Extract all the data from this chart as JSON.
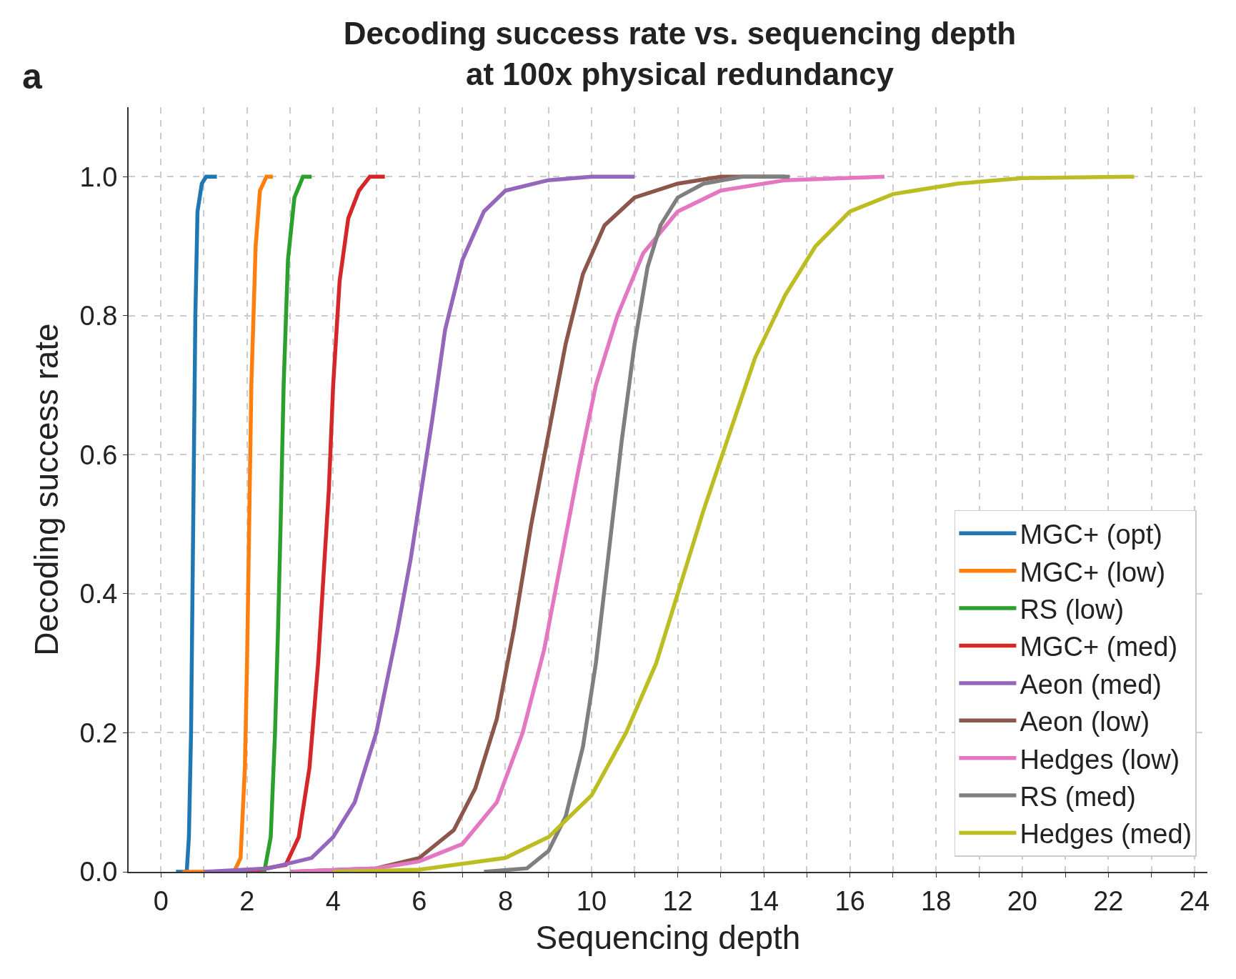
{
  "chart_data": {
    "type": "line",
    "title": "Decoding success rate vs. sequencing depth\nat 100x physical redundancy",
    "xlabel": "Sequencing depth",
    "ylabel": "Decoding success rate",
    "annotations": [
      "a"
    ],
    "xlim": [
      -0.75,
      24.3
    ],
    "ylim": [
      0,
      1.1
    ],
    "xticks": [
      0,
      {
        "value": 1,
        "label": null
      },
      2,
      {
        "value": 3,
        "label": null
      },
      4,
      {
        "value": 5,
        "label": null
      },
      6,
      {
        "value": 7,
        "label": null
      },
      8,
      {
        "value": 9,
        "label": null
      },
      10,
      {
        "value": 11,
        "label": null
      },
      12,
      {
        "value": 13,
        "label": null
      },
      14,
      {
        "value": 15,
        "label": null
      },
      16,
      {
        "value": 17,
        "label": null
      },
      18,
      {
        "value": 19,
        "label": null
      },
      20,
      {
        "value": 21,
        "label": null
      },
      22,
      {
        "value": 23,
        "label": null
      },
      24
    ],
    "yticks": [
      {
        "value": 0,
        "label": "0.0"
      },
      0.2,
      0.4,
      0.6,
      0.8,
      {
        "value": 1,
        "label": "1.0"
      }
    ],
    "grid": true,
    "legend": "bottom right",
    "line_style": "solid",
    "marker": "none",
    "series": [
      {
        "name": "MGC+ (opt)",
        "color": "#1f77b4",
        "x": [
          0.35,
          0.6,
          0.65,
          0.7,
          0.75,
          0.8,
          0.85,
          0.95,
          1.05,
          1.3
        ],
        "values": [
          0,
          0.0,
          0.05,
          0.2,
          0.5,
          0.8,
          0.95,
          0.99,
          1,
          1
        ]
      },
      {
        "name": "MGC+ (low)",
        "color": "#ff7f0e",
        "x": [
          0.5,
          1.7,
          1.85,
          1.95,
          2.0,
          2.05,
          2.1,
          2.2,
          2.3,
          2.45,
          2.6
        ],
        "values": [
          0,
          0,
          0.02,
          0.15,
          0.3,
          0.5,
          0.7,
          0.9,
          0.98,
          1,
          1
        ]
      },
      {
        "name": "RS (low)",
        "color": "#2ca02c",
        "x": [
          1.5,
          2.4,
          2.55,
          2.65,
          2.72,
          2.78,
          2.85,
          2.95,
          3.1,
          3.3,
          3.5
        ],
        "values": [
          0,
          0,
          0.05,
          0.2,
          0.35,
          0.5,
          0.7,
          0.88,
          0.97,
          1,
          1
        ]
      },
      {
        "name": "MGC+ (med)",
        "color": "#d62728",
        "x": [
          2.0,
          2.9,
          3.2,
          3.45,
          3.65,
          3.8,
          3.9,
          4.0,
          4.15,
          4.35,
          4.6,
          4.85,
          5.2
        ],
        "values": [
          0,
          0.01,
          0.05,
          0.15,
          0.3,
          0.45,
          0.55,
          0.7,
          0.85,
          0.94,
          0.98,
          1,
          1
        ]
      },
      {
        "name": "Aeon (med)",
        "color": "#9467bd",
        "x": [
          1.0,
          2.5,
          3.5,
          4.0,
          4.5,
          5.0,
          5.5,
          5.8,
          6.05,
          6.3,
          6.6,
          7.0,
          7.5,
          8.0,
          9.0,
          10.0,
          11.0
        ],
        "values": [
          0,
          0.005,
          0.02,
          0.05,
          0.1,
          0.2,
          0.35,
          0.45,
          0.55,
          0.65,
          0.78,
          0.88,
          0.95,
          0.98,
          0.995,
          1,
          1
        ]
      },
      {
        "name": "Aeon (low)",
        "color": "#8c564b",
        "x": [
          3.0,
          5.0,
          6.0,
          6.8,
          7.3,
          7.8,
          8.2,
          8.6,
          9.0,
          9.4,
          9.8,
          10.3,
          11.0,
          12.0,
          13.0,
          14.5
        ],
        "values": [
          0,
          0.005,
          0.02,
          0.06,
          0.12,
          0.22,
          0.35,
          0.5,
          0.63,
          0.76,
          0.86,
          0.93,
          0.97,
          0.99,
          1,
          1
        ]
      },
      {
        "name": "Hedges (low)",
        "color": "#e377c2",
        "x": [
          3.0,
          5.0,
          6.0,
          7.0,
          7.8,
          8.4,
          8.9,
          9.3,
          9.7,
          10.1,
          10.6,
          11.2,
          12.0,
          13.0,
          14.5,
          16.8
        ],
        "values": [
          0,
          0.005,
          0.015,
          0.04,
          0.1,
          0.2,
          0.32,
          0.45,
          0.58,
          0.7,
          0.8,
          0.89,
          0.95,
          0.98,
          0.995,
          1
        ]
      },
      {
        "name": "RS (med)",
        "color": "#7f7f7f",
        "x": [
          7.5,
          8.5,
          9.0,
          9.4,
          9.8,
          10.1,
          10.4,
          10.7,
          11.0,
          11.3,
          11.6,
          12.0,
          12.6,
          13.5,
          14.6
        ],
        "values": [
          0,
          0.005,
          0.03,
          0.08,
          0.18,
          0.3,
          0.46,
          0.62,
          0.76,
          0.87,
          0.93,
          0.97,
          0.99,
          1,
          1
        ]
      },
      {
        "name": "Hedges (med)",
        "color": "#bcbd22",
        "x": [
          4.0,
          6.0,
          8.0,
          9.0,
          10.0,
          10.8,
          11.5,
          12.0,
          12.6,
          13.2,
          13.8,
          14.5,
          15.2,
          16.0,
          17.0,
          18.5,
          20.0,
          22.6
        ],
        "values": [
          0,
          0.003,
          0.02,
          0.05,
          0.11,
          0.2,
          0.3,
          0.4,
          0.52,
          0.63,
          0.74,
          0.83,
          0.9,
          0.95,
          0.975,
          0.99,
          0.998,
          1
        ]
      }
    ]
  }
}
